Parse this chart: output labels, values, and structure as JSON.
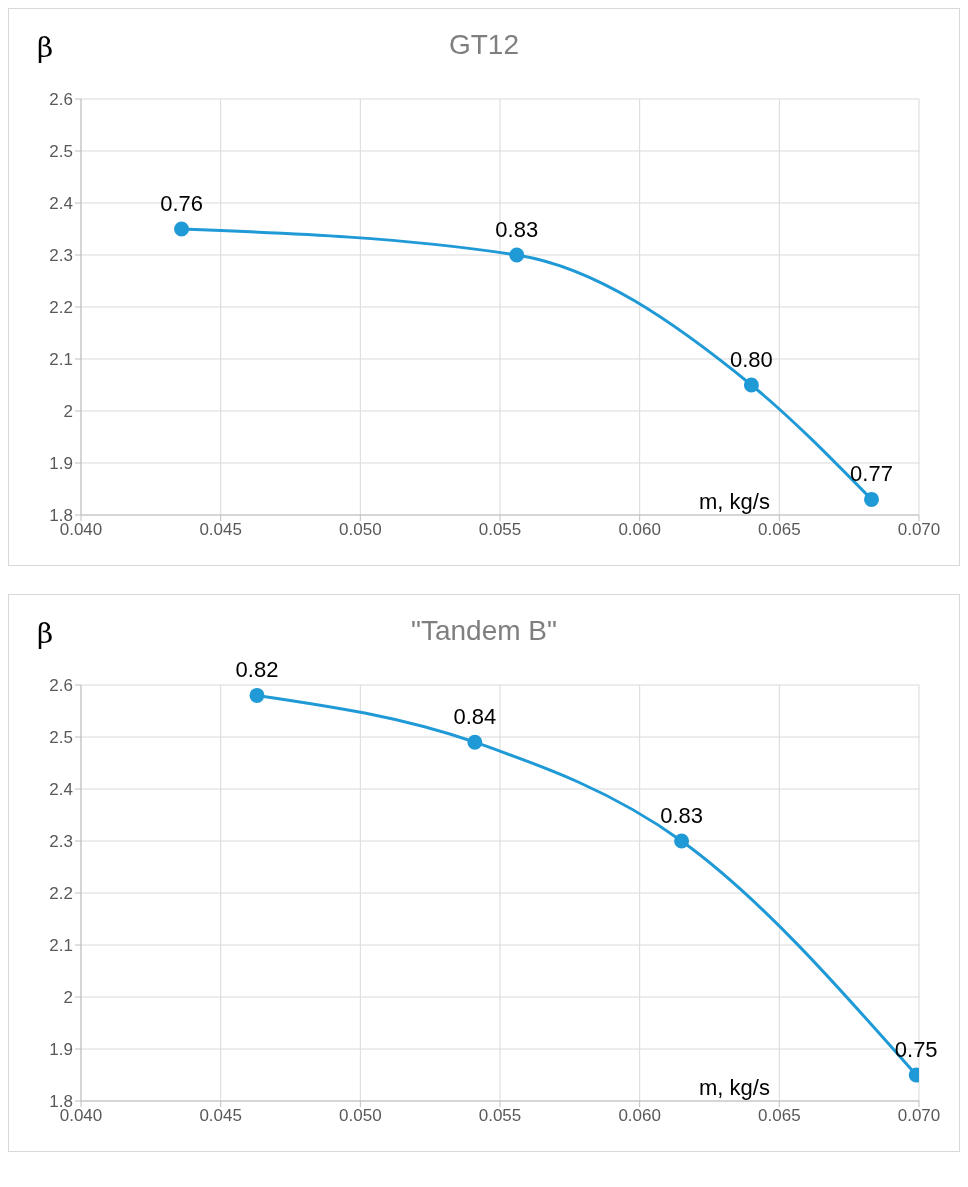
{
  "chart_data": [
    {
      "type": "line",
      "title": "GT12",
      "xlabel": "m, kg/s",
      "ylabel": "β",
      "x": [
        0.0436,
        0.0556,
        0.064,
        0.0683
      ],
      "series": [
        {
          "color": "#1f9ad6",
          "values": [
            2.35,
            2.3,
            2.05,
            1.83
          ]
        }
      ],
      "annotations": [
        {
          "text": "0.76",
          "x": 0.0436,
          "y": 2.35
        },
        {
          "text": "0.83",
          "x": 0.0556,
          "y": 2.3
        },
        {
          "text": "0.80",
          "x": 0.064,
          "y": 2.05
        },
        {
          "text": "0.77",
          "x": 0.0683,
          "y": 1.83
        }
      ],
      "xlim": [
        0.04,
        0.07
      ],
      "xticks": [
        {
          "value": 0.04,
          "label": "0.040"
        },
        {
          "value": 0.045,
          "label": "0.045"
        },
        {
          "value": 0.05,
          "label": "0.050"
        },
        {
          "value": 0.055,
          "label": "0.055"
        },
        {
          "value": 0.06,
          "label": "0.060"
        },
        {
          "value": 0.065,
          "label": "0.065"
        },
        {
          "value": 0.07,
          "label": "0.070"
        }
      ],
      "ylim": [
        1.8,
        2.6
      ],
      "yticks": [
        1.8,
        1.9,
        2,
        2.1,
        2.2,
        2.3,
        2.4,
        2.5,
        2.6
      ],
      "grid": true,
      "marker": "circle",
      "line_style": "solid",
      "legend": false
    },
    {
      "type": "line",
      "title": "\"Tandem B\"",
      "xlabel": "m, kg/s",
      "ylabel": "β",
      "x": [
        0.0463,
        0.0541,
        0.0615,
        0.0699
      ],
      "series": [
        {
          "color": "#1f9ad6",
          "values": [
            2.58,
            2.49,
            2.3,
            1.85
          ]
        }
      ],
      "annotations": [
        {
          "text": "0.82",
          "x": 0.0463,
          "y": 2.58
        },
        {
          "text": "0.84",
          "x": 0.0541,
          "y": 2.49
        },
        {
          "text": "0.83",
          "x": 0.0615,
          "y": 2.3
        },
        {
          "text": "0.75",
          "x": 0.0699,
          "y": 1.85
        }
      ],
      "xlim": [
        0.04,
        0.07
      ],
      "xticks": [
        {
          "value": 0.04,
          "label": "0.040"
        },
        {
          "value": 0.045,
          "label": "0.045"
        },
        {
          "value": 0.05,
          "label": "0.050"
        },
        {
          "value": 0.055,
          "label": "0.055"
        },
        {
          "value": 0.06,
          "label": "0.060"
        },
        {
          "value": 0.065,
          "label": "0.065"
        },
        {
          "value": 0.07,
          "label": "0.070"
        }
      ],
      "ylim": [
        1.8,
        2.6
      ],
      "yticks": [
        1.8,
        1.9,
        2,
        2.1,
        2.2,
        2.3,
        2.4,
        2.5,
        2.6
      ],
      "grid": true,
      "marker": "circle",
      "line_style": "solid",
      "legend": false
    }
  ]
}
